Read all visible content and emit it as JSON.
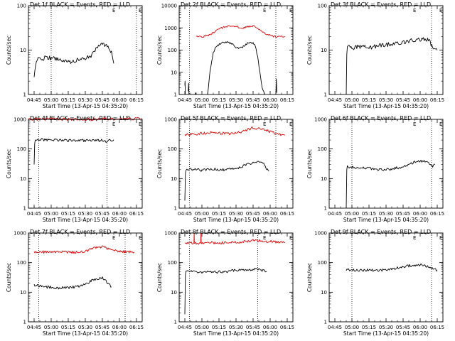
{
  "figure": {
    "ylabel": "Counts/sec",
    "xlabel": "Start Time (13-Apr-15 04:35:20)",
    "x_ticks": [
      "04:45",
      "05:00",
      "05:15",
      "05:30",
      "05:45",
      "06:00",
      "06:15"
    ],
    "y_ticks": [
      "1",
      "10",
      "100",
      "1000"
    ],
    "marker": "E",
    "colors": {
      "events": "#000000",
      "lld": "#e00000",
      "axes": "#000000"
    }
  },
  "chart_data": [
    {
      "type": "line",
      "id": "det1f",
      "title": "Det 1f BLACK = Events, RED = LLD",
      "x_range_minutes": [
        -5,
        95
      ],
      "ylim": [
        1,
        100
      ],
      "y_scale": "log",
      "vlines_minutes": [
        15,
        90
      ],
      "series": [
        {
          "color": "#000000",
          "segments": [
            {
              "x": [
                0,
                2,
                5,
                8,
                10,
                15,
                20,
                25,
                30,
                35,
                40,
                45,
                50,
                55,
                58,
                60,
                62,
                65,
                68,
                70
              ],
              "y": [
                2.5,
                6,
                6.5,
                6,
                7,
                6.5,
                6.5,
                6,
                5.5,
                5.5,
                6.5,
                6.5,
                7.5,
                11,
                14,
                14,
                13,
                12,
                9,
                5
              ]
            }
          ]
        }
      ]
    },
    {
      "type": "line",
      "id": "det2f",
      "title": "Det 2f BLACK = Events, RED = LLD",
      "x_range_minutes": [
        -5,
        95
      ],
      "ylim": [
        1,
        10000
      ],
      "y_scale": "log",
      "vlines_minutes": [
        4,
        80
      ],
      "series": [
        {
          "color": "#e00000",
          "segments": [
            {
              "x": [
                10,
                15,
                20,
                25,
                30,
                35,
                40,
                45,
                50,
                55,
                60,
                65,
                70,
                75,
                80,
                85,
                88
              ],
              "y": [
                400,
                400,
                450,
                600,
                900,
                1100,
                1200,
                1150,
                1000,
                1100,
                1200,
                900,
                600,
                450,
                400,
                400,
                400
              ]
            }
          ]
        },
        {
          "color": "#000000",
          "segments": [
            {
              "x": [
                0,
                0.2,
                0.4
              ],
              "y": [
                2.5,
                4,
                1
              ]
            },
            {
              "x": [
                3,
                3.3,
                3.6
              ],
              "y": [
                1.4,
                3.2,
                1
              ]
            },
            {
              "x": [
                9,
                9.5,
                10
              ],
              "y": [
                1,
                1.2,
                1
              ]
            },
            {
              "x": [
                20,
                22,
                25,
                28,
                32,
                35,
                38,
                42,
                45,
                50,
                55,
                58,
                60,
                62,
                64,
                66,
                68,
                70
              ],
              "y": [
                1,
                10,
                80,
                150,
                200,
                220,
                220,
                200,
                120,
                130,
                200,
                220,
                200,
                150,
                50,
                10,
                2,
                1
              ]
            },
            {
              "x": [
                80,
                80.4,
                80.8
              ],
              "y": [
                1,
                5,
                1.2
              ]
            }
          ]
        }
      ]
    },
    {
      "type": "line",
      "id": "det3f",
      "title": "Det 3f BLACK = Events, RED = LLD",
      "x_range_minutes": [
        -5,
        95
      ],
      "ylim": [
        1,
        100
      ],
      "y_scale": "log",
      "vlines_minutes": [
        85
      ],
      "series": [
        {
          "color": "#000000",
          "segments": [
            {
              "x": [
                10,
                10.5,
                11,
                12,
                15,
                20,
                25,
                30,
                35,
                40,
                45,
                50,
                55,
                60,
                65,
                70,
                75,
                80,
                83,
                86,
                90
              ],
              "y": [
                1,
                8,
                12,
                12,
                11,
                12,
                12,
                11,
                12,
                13,
                13,
                14,
                14,
                15,
                16,
                17,
                17,
                18,
                16,
                12,
                10
              ]
            }
          ]
        }
      ]
    },
    {
      "type": "line",
      "id": "det4f",
      "title": "Det 4f BLACK = Events, RED = LLD",
      "x_range_minutes": [
        -5,
        95
      ],
      "ylim": [
        1,
        1000
      ],
      "y_scale": "log",
      "vlines_minutes": [
        4,
        64
      ],
      "series": [
        {
          "color": "#e00000",
          "segments": [
            {
              "x": [
                -5,
                0,
                10,
                20,
                30,
                40,
                50,
                60,
                70,
                80,
                95
              ],
              "y": [
                1000,
                1000,
                1050,
                1050,
                1000,
                1000,
                1000,
                1050,
                1050,
                1050,
                1050
              ]
            }
          ]
        },
        {
          "color": "#000000",
          "segments": [
            {
              "x": [
                0,
                0.5,
                1,
                5,
                10,
                15,
                20,
                25,
                30,
                35,
                40,
                45,
                50,
                55,
                60,
                64,
                67,
                70
              ],
              "y": [
                30,
                150,
                200,
                205,
                200,
                200,
                200,
                200,
                195,
                200,
                195,
                195,
                195,
                190,
                200,
                180,
                195,
                205
              ]
            }
          ]
        }
      ]
    },
    {
      "type": "line",
      "id": "det5f",
      "title": "Det 5f BLACK = Events, RED = LLD",
      "x_range_minutes": [
        -5,
        95
      ],
      "ylim": [
        1,
        1000
      ],
      "y_scale": "log",
      "vlines_minutes": [
        4,
        80
      ],
      "series": [
        {
          "color": "#e00000",
          "segments": [
            {
              "x": [
                0,
                5,
                10,
                15,
                20,
                25,
                30,
                35,
                40,
                45,
                50,
                55,
                60,
                65,
                70,
                75,
                80,
                85,
                88
              ],
              "y": [
                300,
                310,
                320,
                340,
                350,
                360,
                340,
                330,
                330,
                340,
                380,
                450,
                520,
                500,
                430,
                380,
                340,
                300,
                290
              ]
            }
          ]
        },
        {
          "color": "#000000",
          "segments": [
            {
              "x": [
                0,
                0.5,
                1,
                5,
                10,
                15,
                20,
                25,
                30,
                35,
                40,
                45,
                50,
                55,
                60,
                65,
                70,
                72,
                74
              ],
              "y": [
                1.8,
                15,
                20,
                21,
                20,
                19,
                20,
                21,
                20,
                20,
                21,
                22,
                25,
                30,
                35,
                38,
                30,
                22,
                18
              ]
            }
          ]
        }
      ]
    },
    {
      "type": "line",
      "id": "det6f",
      "title": "Det 6f BLACK = Events, RED = LLD",
      "x_range_minutes": [
        -5,
        95
      ],
      "ylim": [
        1,
        1000
      ],
      "y_scale": "log",
      "vlines_minutes": [
        15,
        85
      ],
      "series": [
        {
          "color": "#000000",
          "segments": [
            {
              "x": [
                10,
                10.5,
                11,
                15,
                20,
                25,
                30,
                35,
                40,
                45,
                50,
                55,
                60,
                65,
                70,
                75,
                80,
                84,
                86,
                88
              ],
              "y": [
                1,
                20,
                25,
                25,
                22,
                24,
                22,
                21,
                20,
                20,
                21,
                23,
                25,
                30,
                36,
                40,
                38,
                30,
                26,
                30
              ]
            }
          ]
        }
      ]
    },
    {
      "type": "line",
      "id": "det7f",
      "title": "Det 7f BLACK = Events, RED = LLD",
      "x_range_minutes": [
        -5,
        95
      ],
      "ylim": [
        1,
        1000
      ],
      "y_scale": "log",
      "vlines_minutes": [
        4,
        80
      ],
      "series": [
        {
          "color": "#e00000",
          "segments": [
            {
              "x": [
                0,
                5,
                10,
                15,
                20,
                25,
                30,
                35,
                40,
                45,
                50,
                55,
                60,
                65,
                70,
                75,
                80,
                85,
                88
              ],
              "y": [
                230,
                235,
                225,
                230,
                235,
                230,
                220,
                225,
                230,
                240,
                280,
                330,
                340,
                300,
                260,
                240,
                235,
                230,
                225
              ]
            }
          ]
        },
        {
          "color": "#000000",
          "segments": [
            {
              "x": [
                0,
                5,
                10,
                15,
                20,
                25,
                30,
                35,
                40,
                45,
                50,
                55,
                60,
                62,
                64,
                66,
                68
              ],
              "y": [
                18,
                16,
                15,
                15,
                14,
                14,
                14,
                15,
                16,
                18,
                24,
                28,
                30,
                28,
                22,
                18,
                15
              ]
            }
          ]
        }
      ]
    },
    {
      "type": "line",
      "id": "det8f",
      "title": "Det 8f BLACK = Events, RED = LLD",
      "x_range_minutes": [
        -5,
        95
      ],
      "ylim": [
        1,
        1000
      ],
      "y_scale": "log",
      "vlines_minutes": [
        4,
        64
      ],
      "series": [
        {
          "color": "#e00000",
          "segments": [
            {
              "x": [
                0,
                5,
                10,
                15,
                20,
                25,
                30,
                35,
                40,
                45,
                50,
                55,
                60,
                65,
                70,
                75,
                80,
                85,
                88
              ],
              "y": [
                450,
                460,
                450,
                470,
                460,
                470,
                460,
                470,
                480,
                490,
                510,
                530,
                560,
                560,
                530,
                520,
                500,
                480,
                470
              ]
            },
            {
              "x": [
                8,
                8.2,
                8.4
              ],
              "y": [
                480,
                1000,
                480
              ]
            },
            {
              "x": [
                14,
                14.2,
                14.4
              ],
              "y": [
                470,
                1000,
                470
              ]
            }
          ]
        },
        {
          "color": "#000000",
          "segments": [
            {
              "x": [
                0,
                0.5,
                1,
                5,
                10,
                15,
                20,
                25,
                30,
                35,
                40,
                45,
                50,
                55,
                60,
                65,
                70,
                72
              ],
              "y": [
                1.8,
                40,
                50,
                52,
                50,
                48,
                50,
                48,
                48,
                50,
                52,
                55,
                58,
                58,
                60,
                58,
                52,
                50
              ]
            }
          ]
        }
      ]
    },
    {
      "type": "line",
      "id": "det9f",
      "title": "Det 9f BLACK = Events, RED = LLD",
      "x_range_minutes": [
        -5,
        95
      ],
      "ylim": [
        1,
        1000
      ],
      "y_scale": "log",
      "vlines_minutes": [
        15,
        85
      ],
      "series": [
        {
          "color": "#000000",
          "segments": [
            {
              "x": [
                10,
                15,
                20,
                25,
                30,
                35,
                40,
                45,
                50,
                55,
                60,
                65,
                70,
                75,
                80,
                85,
                90
              ],
              "y": [
                58,
                56,
                56,
                56,
                55,
                55,
                56,
                57,
                60,
                65,
                70,
                78,
                82,
                85,
                75,
                65,
                55
              ]
            }
          ]
        }
      ]
    }
  ]
}
